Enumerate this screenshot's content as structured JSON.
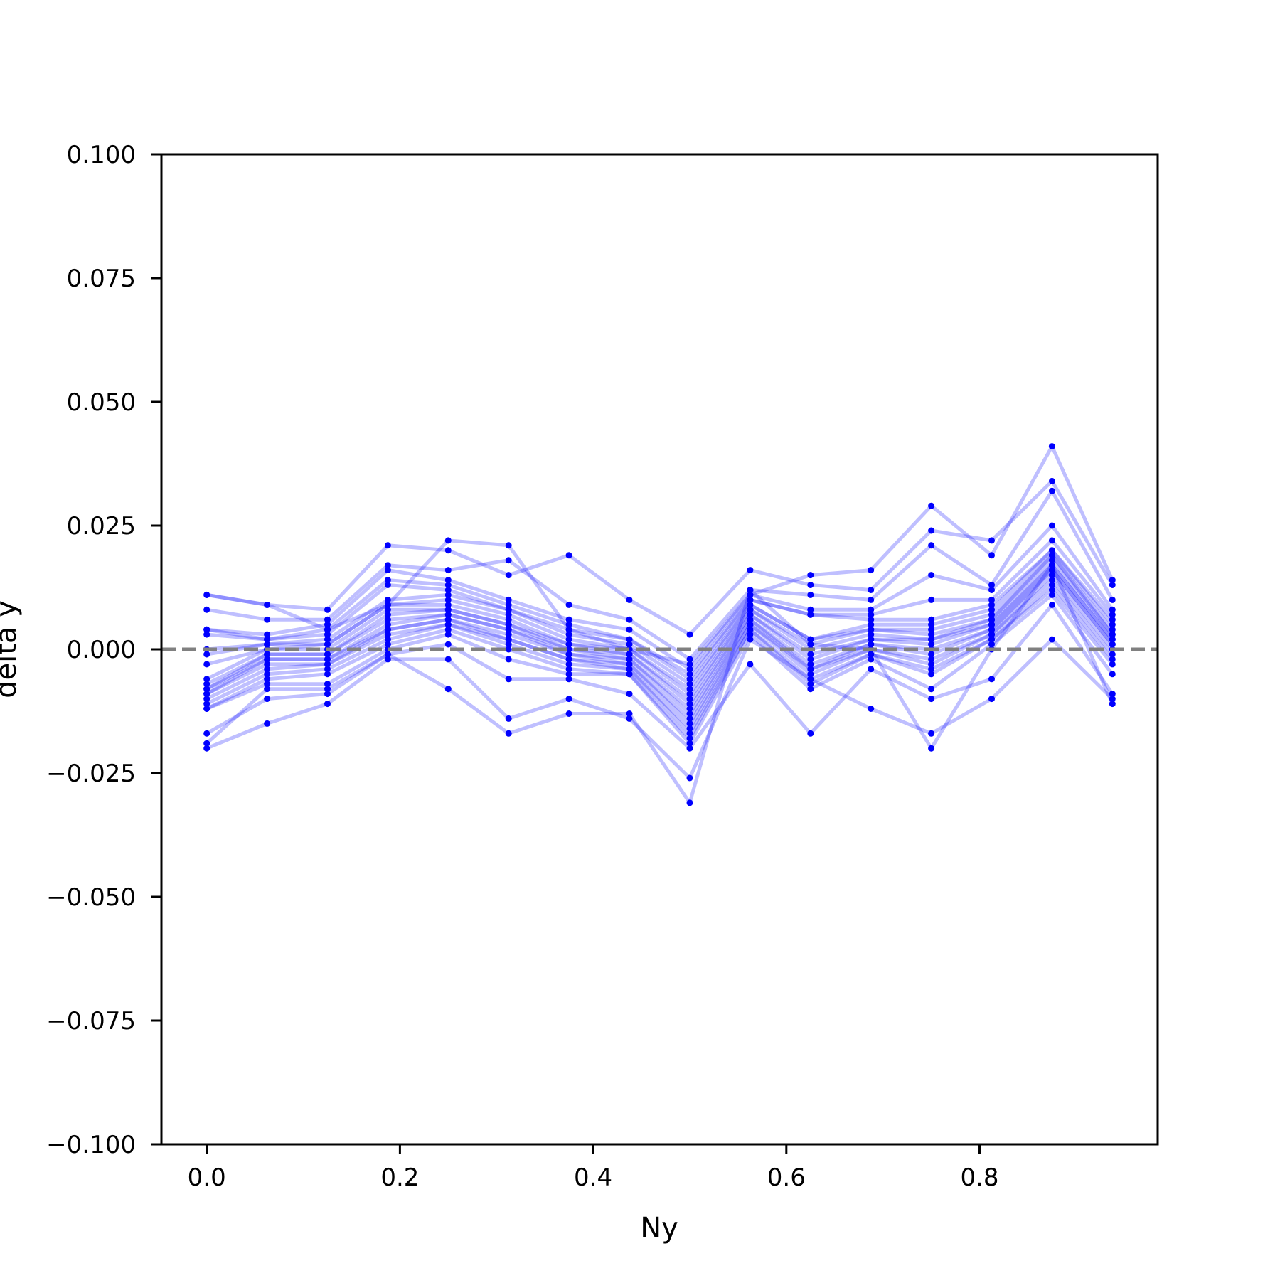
{
  "chart_data": {
    "type": "line",
    "title": "",
    "xlabel": "Ny",
    "ylabel": "delta y",
    "xlim": [
      -0.046875,
      0.984375
    ],
    "ylim": [
      -0.1,
      0.1
    ],
    "x_ticks": [
      0.0,
      0.2,
      0.4,
      0.6,
      0.8
    ],
    "x_tick_labels": [
      "0.0",
      "0.2",
      "0.4",
      "0.6",
      "0.8"
    ],
    "y_ticks": [
      0.1,
      0.075,
      0.05,
      0.025,
      0.0,
      -0.025,
      -0.05,
      -0.075,
      -0.1
    ],
    "y_tick_labels": [
      "0.100",
      "0.075",
      "0.050",
      "0.025",
      "0.000",
      "−0.025",
      "−0.050",
      "−0.075",
      "−0.100"
    ],
    "reference_line": {
      "y": 0.0,
      "style": "dashed",
      "color": "#808080"
    },
    "series_color": "#0000ff",
    "series_alpha": 0.25,
    "grid": false,
    "x": [
      0.0,
      0.0625,
      0.125,
      0.1875,
      0.25,
      0.3125,
      0.375,
      0.4375,
      0.5,
      0.5625,
      0.625,
      0.6875,
      0.75,
      0.8125,
      0.875,
      0.9375
    ],
    "series": [
      {
        "values": [
          0.011,
          0.009,
          0.004,
          0.009,
          0.022,
          0.021,
          0.004,
          0.0,
          -0.003,
          0.011,
          0.015,
          0.016,
          0.029,
          0.019,
          0.041,
          0.014
        ]
      },
      {
        "values": [
          0.011,
          0.009,
          0.008,
          0.021,
          0.02,
          0.015,
          0.019,
          0.01,
          0.003,
          0.016,
          0.013,
          0.012,
          0.024,
          0.022,
          0.034,
          0.013
        ]
      },
      {
        "values": [
          0.008,
          0.006,
          0.006,
          0.017,
          0.016,
          0.018,
          0.009,
          0.006,
          -0.002,
          0.012,
          0.011,
          0.01,
          0.021,
          0.013,
          0.032,
          0.01
        ]
      },
      {
        "values": [
          0.004,
          0.003,
          0.005,
          0.016,
          0.014,
          0.01,
          0.006,
          0.004,
          -0.004,
          0.011,
          0.008,
          0.008,
          0.015,
          0.012,
          0.025,
          0.008
        ]
      },
      {
        "values": [
          0.004,
          0.002,
          0.004,
          0.014,
          0.013,
          0.009,
          0.005,
          0.002,
          -0.005,
          0.01,
          0.007,
          0.007,
          0.01,
          0.01,
          0.022,
          0.007
        ]
      },
      {
        "values": [
          0.003,
          0.002,
          0.003,
          0.013,
          0.012,
          0.008,
          0.004,
          0.002,
          -0.006,
          0.01,
          0.007,
          0.006,
          0.006,
          0.009,
          0.02,
          0.006
        ]
      },
      {
        "values": [
          0.0,
          0.001,
          0.002,
          0.01,
          0.011,
          0.008,
          0.003,
          0.001,
          -0.007,
          0.009,
          0.002,
          0.005,
          0.005,
          0.008,
          0.02,
          0.005
        ]
      },
      {
        "values": [
          -0.001,
          0.001,
          0.001,
          0.009,
          0.01,
          0.007,
          0.002,
          0.0,
          -0.008,
          0.009,
          0.002,
          0.004,
          0.004,
          0.007,
          0.019,
          0.004
        ]
      },
      {
        "values": [
          -0.003,
          0.0,
          0.001,
          0.009,
          0.009,
          0.006,
          0.001,
          0.0,
          -0.009,
          0.008,
          0.001,
          0.004,
          0.003,
          0.006,
          0.019,
          0.003
        ]
      },
      {
        "values": [
          -0.006,
          0.0,
          0.0,
          0.008,
          0.008,
          0.005,
          0.001,
          -0.001,
          -0.01,
          0.008,
          0.0,
          0.003,
          0.002,
          0.006,
          0.018,
          0.003
        ]
      },
      {
        "values": [
          -0.007,
          -0.001,
          -0.001,
          0.007,
          0.008,
          0.005,
          0.0,
          -0.001,
          -0.011,
          0.007,
          -0.001,
          0.002,
          0.002,
          0.005,
          0.017,
          0.002
        ]
      },
      {
        "values": [
          -0.008,
          -0.001,
          -0.001,
          0.006,
          0.007,
          0.004,
          0.0,
          -0.002,
          -0.012,
          0.007,
          -0.002,
          0.002,
          0.001,
          0.005,
          0.017,
          0.002
        ]
      },
      {
        "values": [
          -0.008,
          -0.002,
          -0.002,
          0.005,
          0.007,
          0.004,
          -0.001,
          -0.002,
          -0.013,
          0.006,
          -0.003,
          0.001,
          0.0,
          0.004,
          0.016,
          0.001
        ]
      },
      {
        "values": [
          -0.009,
          -0.002,
          -0.002,
          0.004,
          0.006,
          0.003,
          -0.001,
          -0.003,
          -0.014,
          0.006,
          -0.004,
          0.001,
          -0.001,
          0.004,
          0.016,
          0.001
        ]
      },
      {
        "values": [
          -0.009,
          -0.003,
          -0.003,
          0.004,
          0.006,
          0.002,
          -0.002,
          -0.003,
          -0.015,
          0.005,
          -0.004,
          0.0,
          -0.002,
          0.003,
          0.015,
          0.0
        ]
      },
      {
        "values": [
          -0.01,
          -0.004,
          -0.003,
          0.003,
          0.005,
          0.002,
          -0.002,
          -0.004,
          -0.016,
          0.005,
          -0.005,
          0.0,
          -0.003,
          0.003,
          0.014,
          -0.001
        ]
      },
      {
        "values": [
          -0.011,
          -0.005,
          -0.004,
          0.002,
          0.005,
          0.001,
          -0.003,
          -0.004,
          -0.017,
          0.004,
          -0.006,
          -0.001,
          -0.004,
          0.002,
          0.013,
          -0.002
        ]
      },
      {
        "values": [
          -0.012,
          -0.006,
          -0.005,
          0.001,
          0.004,
          0.0,
          -0.004,
          -0.005,
          -0.018,
          0.004,
          -0.007,
          -0.001,
          -0.005,
          0.002,
          0.012,
          -0.003
        ]
      },
      {
        "values": [
          -0.012,
          -0.007,
          -0.007,
          0.0,
          0.003,
          -0.002,
          -0.005,
          -0.005,
          -0.019,
          0.003,
          -0.008,
          -0.002,
          -0.008,
          0.001,
          0.011,
          -0.005
        ]
      },
      {
        "values": [
          -0.017,
          -0.01,
          -0.009,
          -0.001,
          0.001,
          -0.006,
          -0.006,
          -0.009,
          -0.02,
          -0.003,
          -0.017,
          -0.004,
          -0.01,
          -0.006,
          0.009,
          -0.009
        ]
      },
      {
        "values": [
          -0.02,
          -0.015,
          -0.011,
          -0.002,
          -0.002,
          -0.014,
          -0.01,
          -0.014,
          -0.026,
          0.002,
          -0.006,
          -0.012,
          -0.017,
          -0.01,
          0.002,
          -0.01
        ]
      },
      {
        "values": [
          -0.019,
          -0.008,
          -0.008,
          -0.001,
          -0.008,
          -0.017,
          -0.013,
          -0.013,
          -0.031,
          0.012,
          0.001,
          0.0,
          -0.02,
          0.0,
          0.017,
          -0.011
        ]
      }
    ]
  }
}
